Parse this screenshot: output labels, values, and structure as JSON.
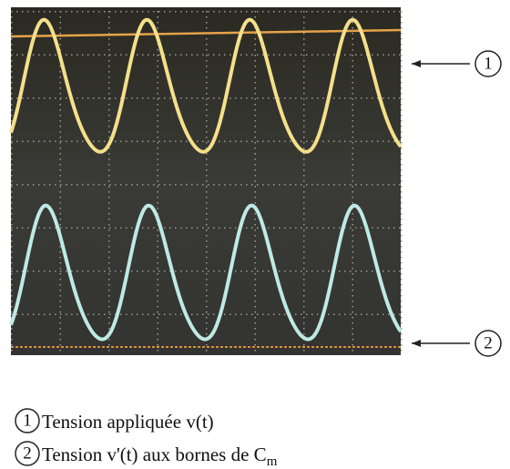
{
  "callouts": [
    "1",
    "2"
  ],
  "legend": [
    {
      "number": "1",
      "text": "Tension appliquée v(t)"
    },
    {
      "number": "2",
      "text": "Tension v'(t) aux bornes de C",
      "subscript": "m"
    }
  ]
}
